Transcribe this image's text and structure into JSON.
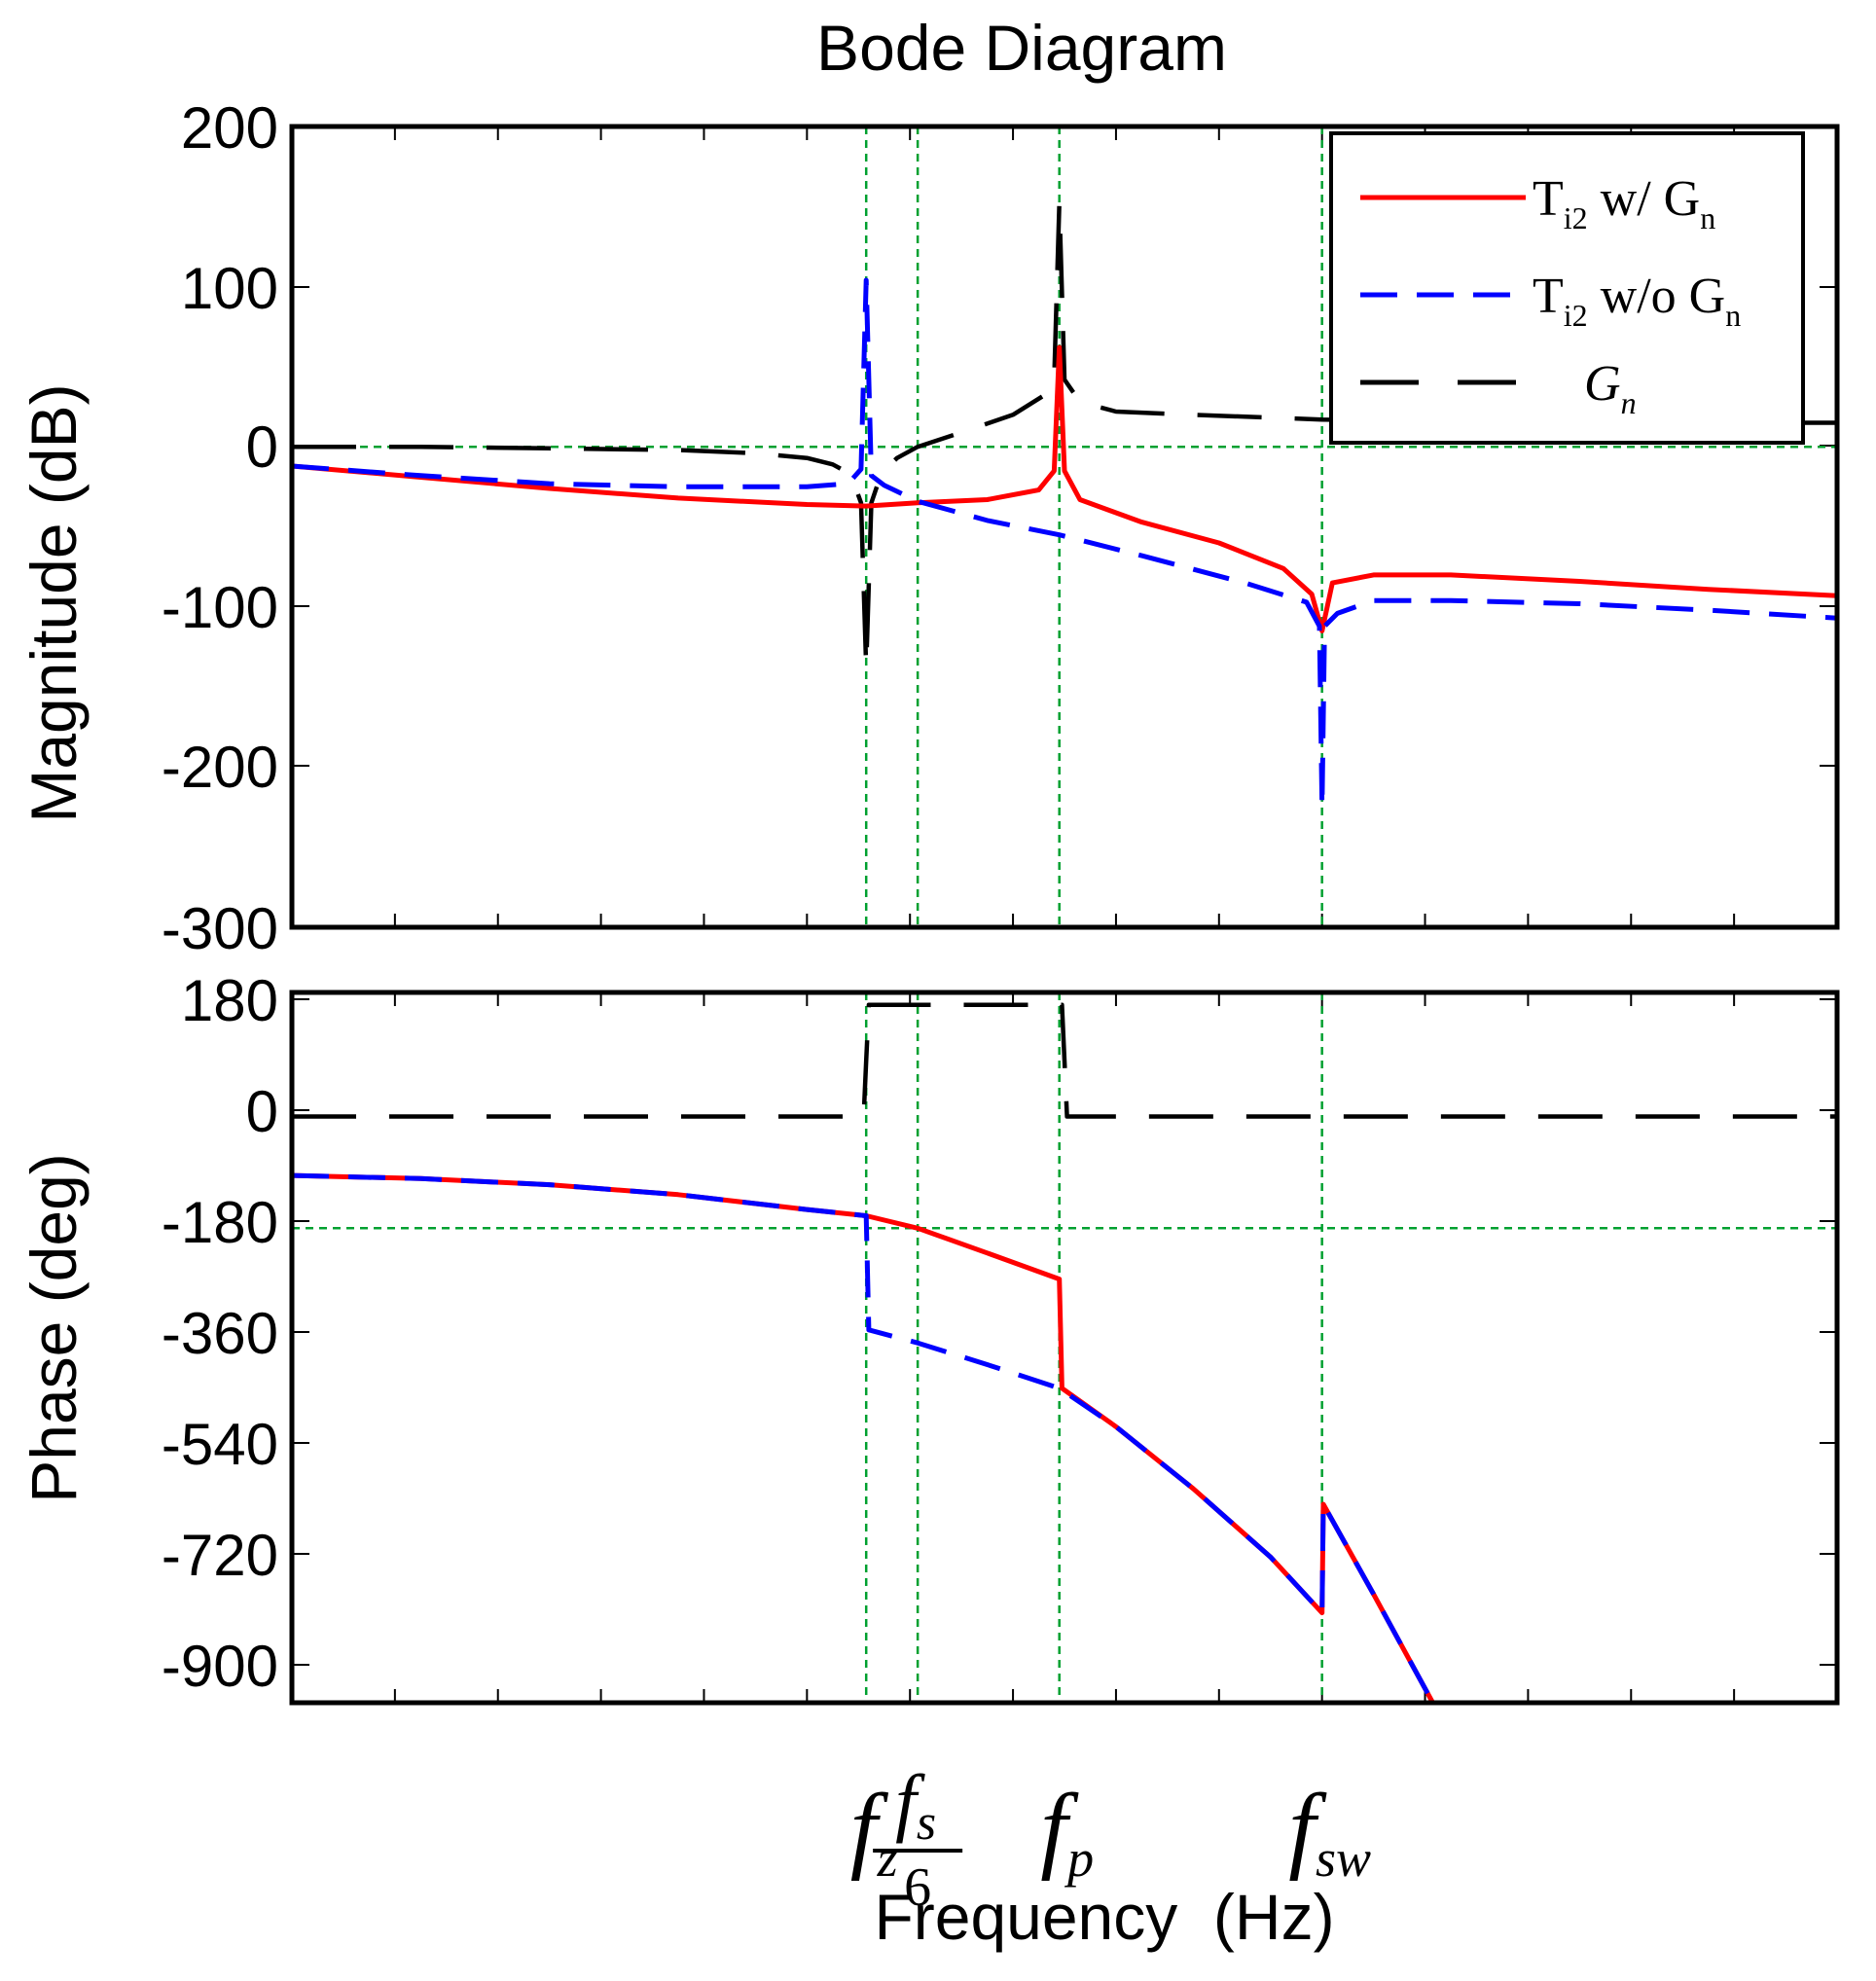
{
  "chart_data": {
    "type": "line",
    "title": "Bode Diagram",
    "xlabel": "Frequency  (Hz)",
    "xscale": "log",
    "colors": {
      "T_with_Gn": "#ff0000",
      "T_without_Gn": "#0000ff",
      "Gn": "#000000",
      "guides": "#00a030"
    },
    "x_ticks": [
      {
        "id": "fz",
        "main": "f",
        "sub": "z",
        "x": 2.73
      },
      {
        "id": "fs6",
        "main": "f",
        "sub": "s",
        "denominator": "6",
        "x": 2.93
      },
      {
        "id": "fp",
        "main": "f",
        "sub": "p",
        "x": 3.48
      },
      {
        "id": "fsw",
        "main": "f",
        "sub": "sw",
        "x": 4.5
      }
    ],
    "legend": {
      "placement": "top-right",
      "entries": [
        {
          "series": "T_with_Gn",
          "label": "T",
          "sub": "i2",
          "rest": " w/ G",
          "rest_sub": "n"
        },
        {
          "series": "T_without_Gn",
          "label": "T",
          "sub": "i2",
          "rest": " w/o G",
          "rest_sub": "n"
        },
        {
          "series": "Gn",
          "label": "G",
          "sub": "n"
        }
      ]
    },
    "panels": {
      "magnitude": {
        "ylabel": "Magnitude (dB)",
        "ylim": [
          -300,
          200
        ],
        "yticks": [
          "200",
          "100",
          "0",
          "-100",
          "-200",
          "-300"
        ],
        "hguides": [
          0
        ],
        "series": [
          {
            "name": "T_with_Gn",
            "style": "solid",
            "x": [
              0.5,
              1.0,
              1.5,
              2.0,
              2.5,
              2.73,
              2.93,
              3.2,
              3.4,
              3.46,
              3.48,
              3.5,
              3.56,
              3.8,
              4.1,
              4.35,
              4.46,
              4.5,
              4.54,
              4.7,
              5.0,
              5.5,
              6.0,
              6.5
            ],
            "y": [
              -12,
              -19,
              -26,
              -32,
              -36,
              -37,
              -35,
              -33,
              -27,
              -15,
              62,
              -15,
              -33,
              -47,
              -60,
              -76,
              -92,
              -115,
              -85,
              -80,
              -80,
              -84,
              -89,
              -93
            ]
          },
          {
            "name": "T_without_Gn",
            "style": "dashed",
            "x": [
              0.5,
              1.0,
              1.5,
              2.0,
              2.5,
              2.66,
              2.71,
              2.73,
              2.75,
              2.8,
              2.93,
              3.2,
              3.48,
              3.8,
              4.2,
              4.44,
              4.49,
              4.5,
              4.51,
              4.56,
              4.7,
              5.0,
              5.5,
              6.0,
              6.5
            ],
            "y": [
              -12,
              -18,
              -23,
              -25,
              -25,
              -23,
              -14,
              104,
              -18,
              -24,
              -34,
              -46,
              -55,
              -68,
              -85,
              -97,
              -112,
              -225,
              -112,
              -104,
              -96,
              -96,
              -98,
              -102,
              -107
            ]
          },
          {
            "name": "Gn",
            "style": "longdash",
            "x": [
              0.5,
              1.0,
              1.5,
              2.0,
              2.3,
              2.5,
              2.6,
              2.67,
              2.71,
              2.73,
              2.75,
              2.79,
              2.85,
              2.93,
              3.1,
              3.3,
              3.42,
              3.46,
              3.48,
              3.5,
              3.56,
              3.7,
              4.0,
              4.5,
              5.0,
              6.0,
              6.5
            ],
            "y": [
              0,
              0,
              -1,
              -2,
              -4,
              -7,
              -11,
              -17,
              -35,
              -138,
              -35,
              -16,
              -7,
              0,
              9,
              20,
              32,
              42,
              152,
              42,
              28,
              22,
              20,
              17,
              16,
              15,
              15
            ]
          }
        ]
      },
      "phase": {
        "ylabel": "Phase (deg)",
        "ylim": [
          -945,
          200
        ],
        "yticks": [
          "180",
          "0",
          "-180",
          "-360",
          "-540",
          "-720",
          "-900"
        ],
        "hguides": [
          -180
        ],
        "series": [
          {
            "name": "T_with_Gn",
            "style": "solid",
            "x": [
              0.5,
              1.0,
              1.5,
              2.0,
              2.5,
              2.73,
              2.93,
              3.2,
              3.48,
              3.49,
              3.7,
              4.0,
              4.3,
              4.5,
              4.505,
              4.7,
              4.93
            ],
            "y": [
              -95,
              -100,
              -110,
              -126,
              -150,
              -160,
              -180,
              -220,
              -262,
              -438,
              -500,
              -600,
              -710,
              -800,
              -625,
              -770,
              -945
            ]
          },
          {
            "name": "T_without_Gn",
            "style": "dashed",
            "x": [
              0.5,
              1.0,
              1.5,
              2.0,
              2.5,
              2.73,
              2.74,
              2.93,
              3.2,
              3.48,
              3.7,
              4.0,
              4.3,
              4.5,
              4.505,
              4.7,
              4.93
            ],
            "y": [
              -95,
              -100,
              -110,
              -126,
              -150,
              -160,
              -344,
              -365,
              -400,
              -438,
              -500,
              -600,
              -710,
              -800,
              -625,
              -770,
              -945
            ]
          },
          {
            "name": "Gn",
            "style": "longdash",
            "x": [
              0.5,
              2.72,
              2.73,
              2.74,
              3.49,
              3.5,
              3.51,
              6.5
            ],
            "y": [
              0,
              0,
              90,
              180,
              180,
              90,
              0,
              0
            ]
          }
        ]
      }
    }
  }
}
